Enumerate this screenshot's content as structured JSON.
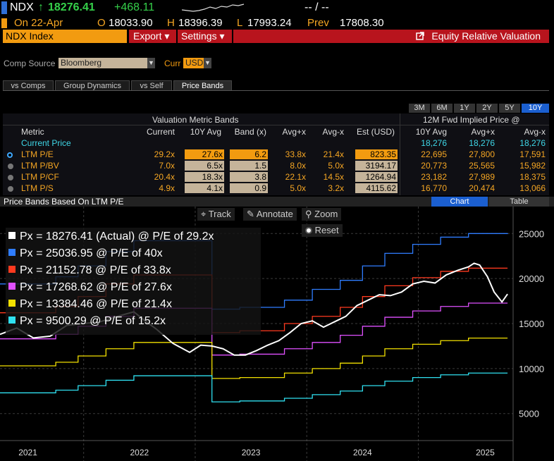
{
  "ticker": {
    "symbol": "NDX",
    "arrow": "↑",
    "last": "18276.41",
    "change": "+468.11",
    "range": "-- / --"
  },
  "session": {
    "on": "On 22-Apr",
    "o_label": "O",
    "open": "18033.90",
    "h_label": "H",
    "high": "18396.39",
    "l_label": "L",
    "low": "17993.24",
    "prev_label": "Prev",
    "prev": "17808.30"
  },
  "menubar": {
    "security": "NDX Index",
    "export": "Export ▾",
    "settings": "Settings ▾",
    "title": "Equity Relative Valuation"
  },
  "controls": {
    "comp_source_label": "Comp Source",
    "comp_source_value": "Bloomberg",
    "curr_label": "Curr",
    "curr_value": "USD"
  },
  "tabs": [
    "vs Comps",
    "Group Dynamics",
    "vs Self",
    "Price Bands"
  ],
  "periods": [
    "3M",
    "6M",
    "1Y",
    "2Y",
    "5Y",
    "10Y"
  ],
  "table": {
    "group_left": "Valuation Metric Bands",
    "group_right": "12M Fwd Implied Price @",
    "headers": [
      "Metric",
      "Current",
      "10Y Avg",
      "Band (x)",
      "Avg+x",
      "Avg-x",
      "Est (USD)",
      "10Y Avg",
      "Avg+x",
      "Avg-x"
    ],
    "current_price": {
      "label": "Current Price",
      "v1": "18,276",
      "v2": "18,276",
      "v3": "18,276"
    },
    "rows": [
      {
        "metric": "LTM P/E",
        "current": "29.2x",
        "avg": "27.6x",
        "band": "6.2",
        "plus": "33.8x",
        "minus": "21.4x",
        "est": "823.35",
        "p_avg": "22,695",
        "p_plus": "27,800",
        "p_minus": "17,591"
      },
      {
        "metric": "LTM P/BV",
        "current": "7.0x",
        "avg": "6.5x",
        "band": "1.5",
        "plus": "8.0x",
        "minus": "5.0x",
        "est": "3194.17",
        "p_avg": "20,773",
        "p_plus": "25,565",
        "p_minus": "15,982"
      },
      {
        "metric": "LTM P/CF",
        "current": "20.4x",
        "avg": "18.3x",
        "band": "3.8",
        "plus": "22.1x",
        "minus": "14.5x",
        "est": "1264.94",
        "p_avg": "23,182",
        "p_plus": "27,989",
        "p_minus": "18,375"
      },
      {
        "metric": "LTM P/S",
        "current": "4.9x",
        "avg": "4.1x",
        "band": "0.9",
        "plus": "5.0x",
        "minus": "3.2x",
        "est": "4115.62",
        "p_avg": "16,770",
        "p_plus": "20,474",
        "p_minus": "13,066"
      }
    ]
  },
  "chart_header": {
    "title": "Price Bands Based On LTM P/E",
    "chart_tab": "Chart",
    "table_tab": "Table"
  },
  "toolbar": {
    "track": "Track",
    "annotate": "Annotate",
    "zoom": "Zoom",
    "reset": "Reset"
  },
  "colors": {
    "actual": "#ffffff",
    "pe40": "#2f7dff",
    "pe33_8": "#ff3a1f",
    "pe27_6": "#e050ff",
    "pe21_4": "#f2e000",
    "pe15_2": "#2fe0f0",
    "orange": "#f29b10",
    "red": "#b8141d"
  },
  "chart_data": {
    "type": "line",
    "legend": [
      {
        "text": "Px = 18276.41 (Actual) @ P/E of 29.2x",
        "color": "#ffffff"
      },
      {
        "text": "Px = 25036.95 @ P/E of 40x",
        "color": "#2f7dff"
      },
      {
        "text": "Px = 21152.78 @ P/E of 33.8x",
        "color": "#ff3a1f"
      },
      {
        "text": "Px = 17268.62 @ P/E of 27.6x",
        "color": "#e050ff"
      },
      {
        "text": "Px = 13384.46 @ P/E of 21.4x",
        "color": "#f2e000"
      },
      {
        "text": "Px = 9500.29 @ P/E of 15.2x",
        "color": "#2fe0f0"
      }
    ],
    "x_ticks": [
      "2021",
      "2022",
      "2023",
      "2024",
      "2025"
    ],
    "y_ticks": [
      5000,
      10000,
      15000,
      20000,
      25000
    ],
    "ylim": [
      2000,
      28000
    ],
    "xlim": [
      2020.75,
      2025.35
    ],
    "grid": true,
    "series": [
      {
        "color": "#ffffff",
        "x": [
          2020.75,
          2020.9,
          2021.05,
          2021.2,
          2021.35,
          2021.5,
          2021.65,
          2021.8,
          2021.95,
          2022.05,
          2022.15,
          2022.3,
          2022.45,
          2022.55,
          2022.65,
          2022.75,
          2022.85,
          2022.95,
          2023.05,
          2023.15,
          2023.25,
          2023.35,
          2023.45,
          2023.55,
          2023.65,
          2023.75,
          2023.85,
          2023.95,
          2024.05,
          2024.15,
          2024.25,
          2024.35,
          2024.45,
          2024.55,
          2024.65,
          2024.75,
          2024.85,
          2024.95,
          2025.0,
          2025.05,
          2025.12,
          2025.18,
          2025.25,
          2025.3
        ],
        "y": [
          13800,
          14500,
          13400,
          13600,
          14800,
          15000,
          15200,
          15800,
          16300,
          15300,
          14400,
          12800,
          11800,
          12600,
          12500,
          12200,
          11500,
          11500,
          12000,
          12600,
          13100,
          14000,
          15000,
          15300,
          14600,
          15200,
          15800,
          17000,
          17600,
          18200,
          18100,
          18500,
          19400,
          19700,
          19500,
          20400,
          20900,
          21300,
          21700,
          21500,
          20200,
          18500,
          17400,
          18276
        ]
      },
      {
        "color": "#2f7dff",
        "steps": [
          [
            2020.75,
            19400
          ],
          [
            2021.25,
            20200
          ],
          [
            2021.45,
            21400
          ],
          [
            2021.7,
            23000
          ],
          [
            2021.95,
            24200
          ],
          [
            2022.65,
            16600
          ],
          [
            2022.9,
            16800
          ],
          [
            2023.3,
            17600
          ],
          [
            2023.55,
            18800
          ],
          [
            2023.8,
            19800
          ],
          [
            2024.0,
            21400
          ],
          [
            2024.2,
            22800
          ],
          [
            2024.45,
            23800
          ],
          [
            2024.7,
            24600
          ],
          [
            2024.95,
            25000
          ],
          [
            2025.3,
            25037
          ]
        ]
      },
      {
        "color": "#ff3a1f",
        "steps": [
          [
            2020.75,
            16200
          ],
          [
            2021.25,
            16900
          ],
          [
            2021.45,
            18000
          ],
          [
            2021.7,
            19400
          ],
          [
            2021.95,
            20400
          ],
          [
            2022.65,
            14000
          ],
          [
            2022.9,
            14200
          ],
          [
            2023.3,
            15000
          ],
          [
            2023.55,
            15800
          ],
          [
            2023.8,
            16800
          ],
          [
            2024.0,
            18000
          ],
          [
            2024.2,
            19200
          ],
          [
            2024.45,
            20100
          ],
          [
            2024.7,
            20800
          ],
          [
            2024.95,
            21153
          ],
          [
            2025.3,
            21153
          ]
        ]
      },
      {
        "color": "#e050ff",
        "steps": [
          [
            2020.75,
            13300
          ],
          [
            2021.25,
            13800
          ],
          [
            2021.45,
            14700
          ],
          [
            2021.7,
            15800
          ],
          [
            2021.95,
            16700
          ],
          [
            2022.65,
            11500
          ],
          [
            2022.9,
            11600
          ],
          [
            2023.3,
            12200
          ],
          [
            2023.55,
            12900
          ],
          [
            2023.8,
            13700
          ],
          [
            2024.0,
            14700
          ],
          [
            2024.2,
            15700
          ],
          [
            2024.45,
            16400
          ],
          [
            2024.7,
            16900
          ],
          [
            2024.95,
            17269
          ],
          [
            2025.3,
            17269
          ]
        ]
      },
      {
        "color": "#f2e000",
        "steps": [
          [
            2020.75,
            10300
          ],
          [
            2021.25,
            10700
          ],
          [
            2021.45,
            11400
          ],
          [
            2021.7,
            12200
          ],
          [
            2021.95,
            12900
          ],
          [
            2022.65,
            8900
          ],
          [
            2022.9,
            9000
          ],
          [
            2023.3,
            9500
          ],
          [
            2023.55,
            10000
          ],
          [
            2023.8,
            10600
          ],
          [
            2024.0,
            11400
          ],
          [
            2024.2,
            12200
          ],
          [
            2024.45,
            12700
          ],
          [
            2024.7,
            13100
          ],
          [
            2024.95,
            13384
          ],
          [
            2025.3,
            13384
          ]
        ]
      },
      {
        "color": "#2fe0f0",
        "steps": [
          [
            2020.75,
            7300
          ],
          [
            2021.25,
            7600
          ],
          [
            2021.45,
            8100
          ],
          [
            2021.7,
            8700
          ],
          [
            2021.95,
            9200
          ],
          [
            2022.65,
            6300
          ],
          [
            2022.9,
            6400
          ],
          [
            2023.3,
            6700
          ],
          [
            2023.55,
            7100
          ],
          [
            2023.8,
            7500
          ],
          [
            2024.0,
            8100
          ],
          [
            2024.2,
            8600
          ],
          [
            2024.45,
            9000
          ],
          [
            2024.7,
            9300
          ],
          [
            2024.95,
            9500
          ],
          [
            2025.3,
            9500
          ]
        ]
      }
    ]
  }
}
